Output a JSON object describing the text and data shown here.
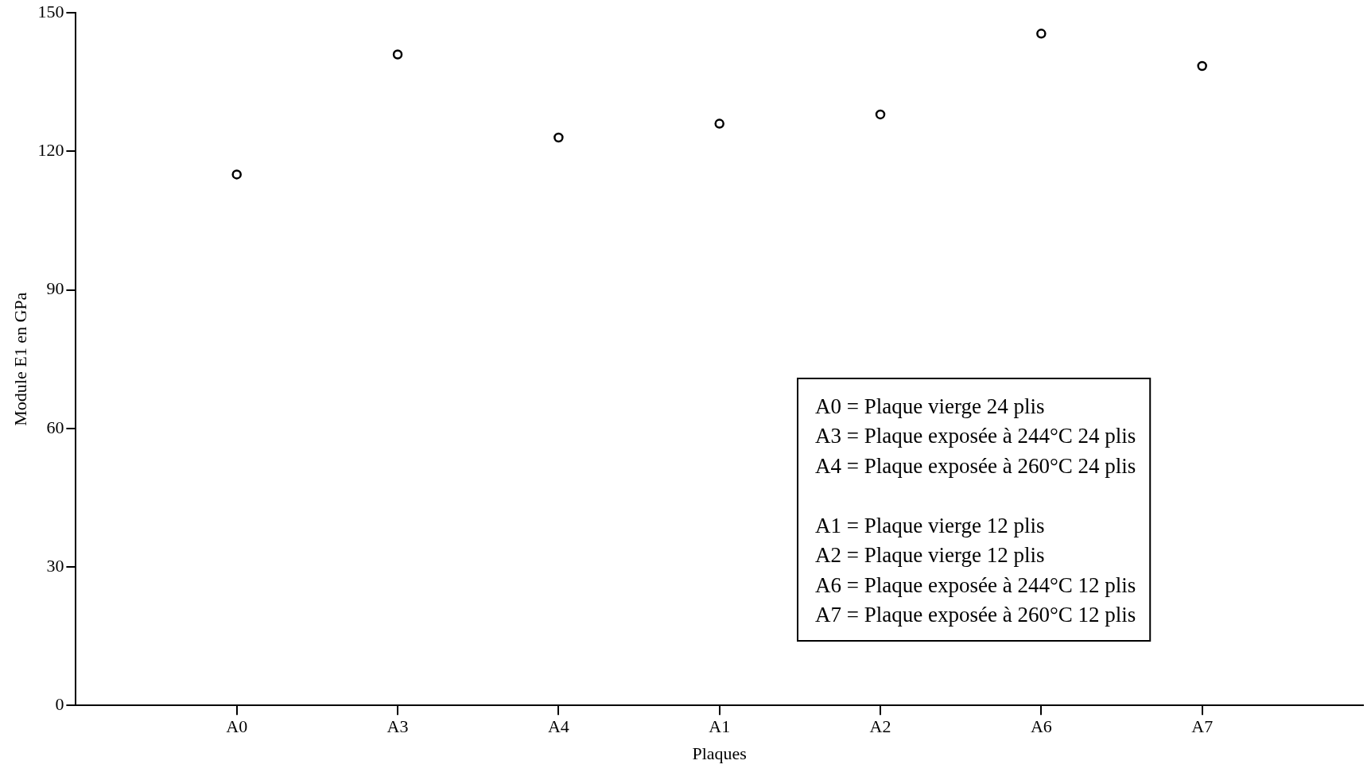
{
  "chart_data": {
    "type": "scatter",
    "xlabel": "Plaques",
    "ylabel": "Module E1 en GPa",
    "categories": [
      "A0",
      "A3",
      "A4",
      "A1",
      "A2",
      "A6",
      "A7"
    ],
    "series": [
      {
        "color": "#000000",
        "values": [
          115,
          141,
          123,
          126,
          128,
          145.5,
          138.5
        ]
      }
    ],
    "ylim": [
      0,
      150
    ],
    "yticks": [
      0,
      30,
      60,
      90,
      120,
      150
    ],
    "grid": false,
    "legend": false,
    "marker": "circle",
    "annotations": [
      "A0 = Plaque vierge 24 plis",
      "A3 = Plaque exposée à 244°C 24 plis",
      "A4 = Plaque exposée à 260°C 24 plis",
      "A1 = Plaque vierge 12 plis",
      "A2 = Plaque vierge 12 plis",
      "A6 = Plaque exposée à 244°C 12 plis",
      "A7 = Plaque exposée à 260°C 12 plis"
    ]
  }
}
